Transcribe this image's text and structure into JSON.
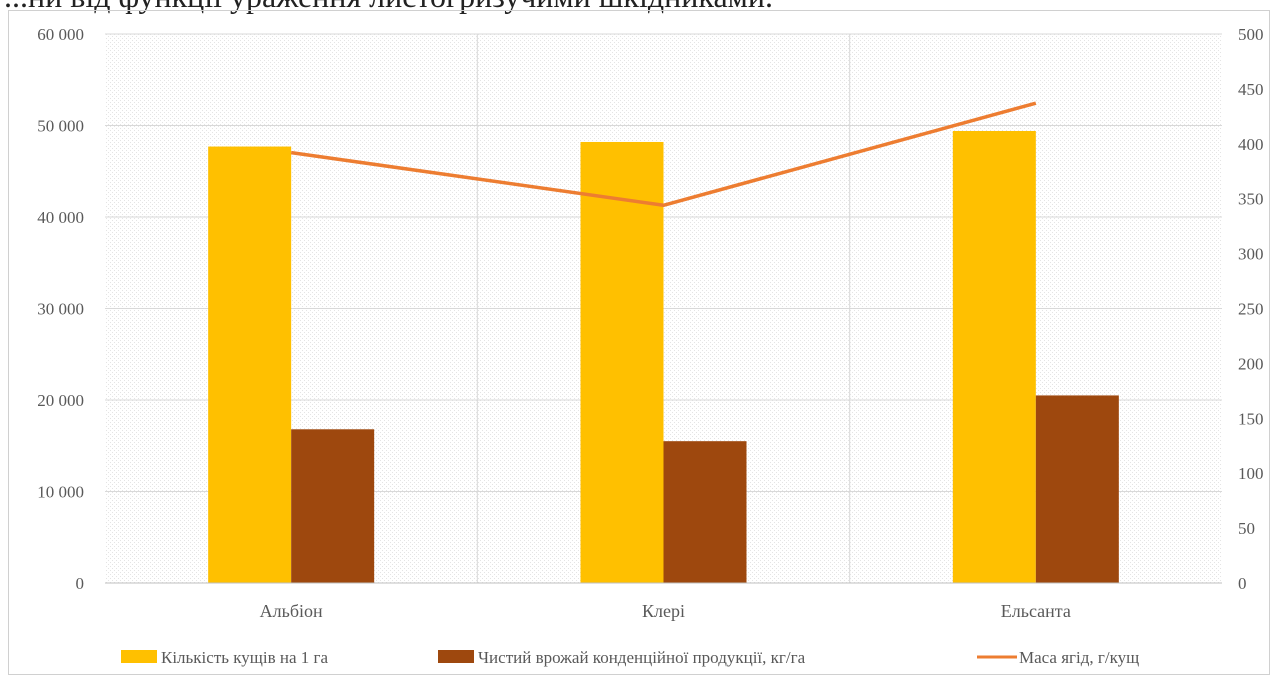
{
  "header": {
    "text": "...ни від функції ураження листогризучими шкідниками."
  },
  "chart_data": {
    "type": "bar",
    "categories": [
      "Альбіон",
      "Клері",
      "Ельсанта"
    ],
    "series": [
      {
        "name": "Кількість кущів на 1 га",
        "type": "bar",
        "axis": "left",
        "color": "#FFC000",
        "values": [
          47700,
          48200,
          49400
        ]
      },
      {
        "name": "Чистий врожай конденційної продукції, кг/га",
        "type": "bar",
        "axis": "left",
        "color": "#9E480E",
        "values": [
          16800,
          15500,
          20500
        ]
      },
      {
        "name": "Маса ягід, г/кущ",
        "type": "line",
        "axis": "right",
        "color": "#ED7D31",
        "values": [
          392,
          344,
          437
        ]
      }
    ],
    "y_left": {
      "min": 0,
      "max": 60000,
      "ticks": [
        "0",
        "10 000",
        "20 000",
        "30 000",
        "40 000",
        "50 000",
        "60 000"
      ]
    },
    "y_right": {
      "min": 0,
      "max": 500,
      "ticks": [
        "0",
        "50",
        "100",
        "150",
        "200",
        "250",
        "300",
        "350",
        "400",
        "450",
        "500"
      ]
    },
    "title": "",
    "xlabel": "",
    "ylabel": "",
    "grid": true,
    "legend_position": "bottom"
  }
}
